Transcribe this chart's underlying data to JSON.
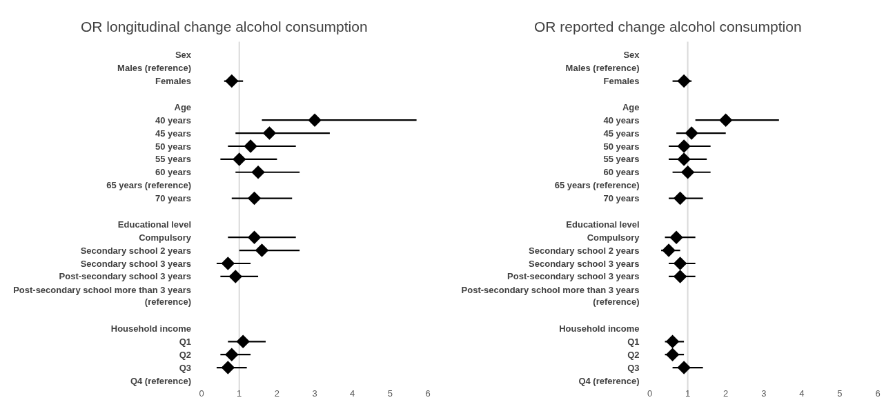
{
  "chart_data": [
    {
      "type": "scatter",
      "orientation": "horizontal",
      "title": "OR longitudinal change alcohol consumption",
      "categories": [
        "Sex",
        "Males (reference)",
        "Females",
        null,
        "Age",
        "40 years",
        "45 years",
        "50 years",
        "55 years",
        "60 years",
        "65 years (reference)",
        "70 years",
        null,
        "Educational level",
        "Compulsory",
        "Secondary school 2 years",
        "Secondary school 3 years",
        "Post-secondary school 3 years",
        "Post-secondary school more than 3 years (reference)",
        null,
        null,
        "Household income",
        "Q1",
        "Q2",
        "Q3",
        "Q4 (reference)"
      ],
      "values": [
        null,
        null,
        0.8,
        null,
        null,
        3.0,
        1.8,
        1.3,
        1.0,
        1.5,
        null,
        1.4,
        null,
        null,
        1.4,
        1.6,
        0.7,
        0.9,
        null,
        null,
        null,
        null,
        1.1,
        0.8,
        0.7,
        null
      ],
      "errors": [
        null,
        null,
        [
          0.6,
          1.1
        ],
        null,
        null,
        [
          1.6,
          5.7
        ],
        [
          0.9,
          3.4
        ],
        [
          0.7,
          2.5
        ],
        [
          0.5,
          2.0
        ],
        [
          0.9,
          2.6
        ],
        null,
        [
          0.8,
          2.4
        ],
        null,
        null,
        [
          0.7,
          2.5
        ],
        [
          1.0,
          2.6
        ],
        [
          0.4,
          1.3
        ],
        [
          0.5,
          1.5
        ],
        null,
        null,
        null,
        null,
        [
          0.7,
          1.7
        ],
        [
          0.5,
          1.3
        ],
        [
          0.4,
          1.2
        ],
        null
      ],
      "color": "#000000",
      "marker": "diamond",
      "xlim": [
        0,
        6
      ],
      "xticks": [
        0,
        1,
        2,
        3,
        4,
        5,
        6
      ],
      "grid": false,
      "ref_lines": [
        {
          "axis": "x",
          "value": 1,
          "color": "#d9d9d9"
        }
      ]
    },
    {
      "type": "scatter",
      "orientation": "horizontal",
      "title": "OR reported change alcohol consumption",
      "categories": [
        "Sex",
        "Males (reference)",
        "Females",
        null,
        "Age",
        "40 years",
        "45 years",
        "50 years",
        "55 years",
        "60 years",
        "65 years (reference)",
        "70 years",
        null,
        "Educational level",
        "Compulsory",
        "Secondary school 2 years",
        "Secondary school 3 years",
        "Post-secondary school 3 years",
        "Post-secondary school more than 3 years (reference)",
        null,
        null,
        "Household income",
        "Q1",
        "Q2",
        "Q3",
        "Q4 (reference)"
      ],
      "values": [
        null,
        null,
        0.9,
        null,
        null,
        2.0,
        1.1,
        0.9,
        0.9,
        1.0,
        null,
        0.8,
        null,
        null,
        0.7,
        0.5,
        0.8,
        0.8,
        null,
        null,
        null,
        null,
        0.6,
        0.6,
        0.9,
        null
      ],
      "errors": [
        null,
        null,
        [
          0.6,
          1.1
        ],
        null,
        null,
        [
          1.2,
          3.4
        ],
        [
          0.7,
          2.0
        ],
        [
          0.5,
          1.6
        ],
        [
          0.5,
          1.5
        ],
        [
          0.6,
          1.6
        ],
        null,
        [
          0.5,
          1.4
        ],
        null,
        null,
        [
          0.4,
          1.2
        ],
        [
          0.3,
          0.8
        ],
        [
          0.5,
          1.2
        ],
        [
          0.5,
          1.2
        ],
        null,
        null,
        null,
        null,
        [
          0.4,
          0.9
        ],
        [
          0.4,
          0.9
        ],
        [
          0.6,
          1.4
        ],
        null
      ],
      "color": "#000000",
      "marker": "diamond",
      "xlim": [
        0,
        6
      ],
      "xticks": [
        0,
        1,
        2,
        3,
        4,
        5,
        6
      ],
      "grid": false,
      "ref_lines": [
        {
          "axis": "x",
          "value": 1,
          "color": "#d9d9d9"
        }
      ]
    }
  ]
}
